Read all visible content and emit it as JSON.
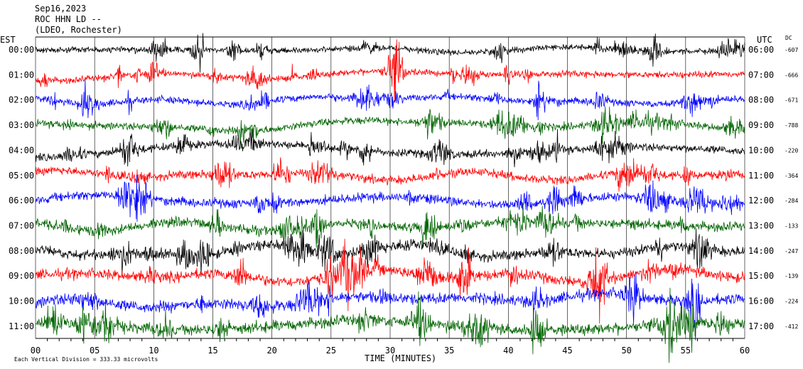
{
  "header": {
    "date": "Sep16,2023",
    "station": "ROC HHN LD --",
    "location": "(LDEO, Rochester)"
  },
  "left_axis_title": "EST",
  "right_axis_title": "UTC",
  "dc_title": "DC",
  "xlabel": "TIME (MINUTES)",
  "footnote": "Each Vertical Division =  333.33 microvolts",
  "chart_data": {
    "type": "line",
    "title": "",
    "xlabel": "TIME (MINUTES)",
    "xlim": [
      0,
      60
    ],
    "x_ticks": [
      "00",
      "05",
      "10",
      "15",
      "20",
      "25",
      "30",
      "35",
      "40",
      "45",
      "50",
      "55",
      "60"
    ],
    "trace_colors": [
      "#000000",
      "#ff0000",
      "#0000ff",
      "#006400"
    ],
    "rows": [
      {
        "est": "00:00",
        "utc": "06:00",
        "dc": "-607"
      },
      {
        "est": "01:00",
        "utc": "07:00",
        "dc": "-666"
      },
      {
        "est": "02:00",
        "utc": "08:00",
        "dc": "-671"
      },
      {
        "est": "03:00",
        "utc": "09:00",
        "dc": "-788"
      },
      {
        "est": "04:00",
        "utc": "10:00",
        "dc": "-220"
      },
      {
        "est": "05:00",
        "utc": "11:00",
        "dc": "-364"
      },
      {
        "est": "06:00",
        "utc": "12:00",
        "dc": "-284"
      },
      {
        "est": "07:00",
        "utc": "13:00",
        "dc": "-133"
      },
      {
        "est": "08:00",
        "utc": "14:00",
        "dc": "-247"
      },
      {
        "est": "09:00",
        "utc": "15:00",
        "dc": "-139"
      },
      {
        "est": "10:00",
        "utc": "16:00",
        "dc": "-224"
      },
      {
        "est": "11:00",
        "utc": "17:00",
        "dc": "-412"
      }
    ]
  }
}
